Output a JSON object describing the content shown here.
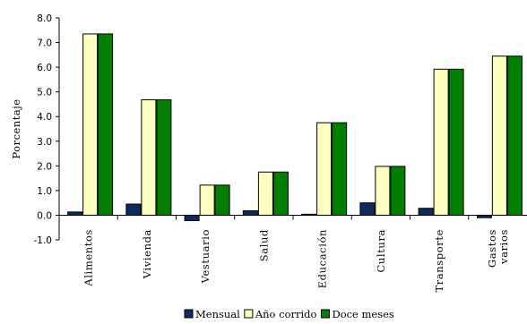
{
  "chart_data": {
    "type": "bar",
    "ylabel": "Porcentaje",
    "ylim": [
      -1.0,
      8.0
    ],
    "yticks": [
      "-1.0",
      "0.0",
      "1.0",
      "2.0",
      "3.0",
      "4.0",
      "5.0",
      "6.0",
      "7.0",
      "8.0"
    ],
    "categories": [
      [
        "Alimentos"
      ],
      [
        "Vivienda"
      ],
      [
        "Vestuario"
      ],
      [
        "Salud"
      ],
      [
        "Educación"
      ],
      [
        "Cultura"
      ],
      [
        "Transporte"
      ],
      [
        "Gastos",
        "varios"
      ]
    ],
    "series": [
      {
        "name": "Mensual",
        "color": "#0b2c5c",
        "values": [
          0.13,
          0.45,
          -0.22,
          0.18,
          0.04,
          0.5,
          0.28,
          -0.1
        ]
      },
      {
        "name": "Año corrido",
        "color": "#ffffc0",
        "values": [
          7.35,
          4.68,
          1.22,
          1.75,
          3.75,
          1.98,
          5.92,
          6.45
        ]
      },
      {
        "name": "Doce meses",
        "color": "#007f00",
        "values": [
          7.35,
          4.68,
          1.22,
          1.75,
          3.75,
          1.98,
          5.92,
          6.45
        ]
      }
    ],
    "legend_position": "bottom",
    "grid": false
  }
}
